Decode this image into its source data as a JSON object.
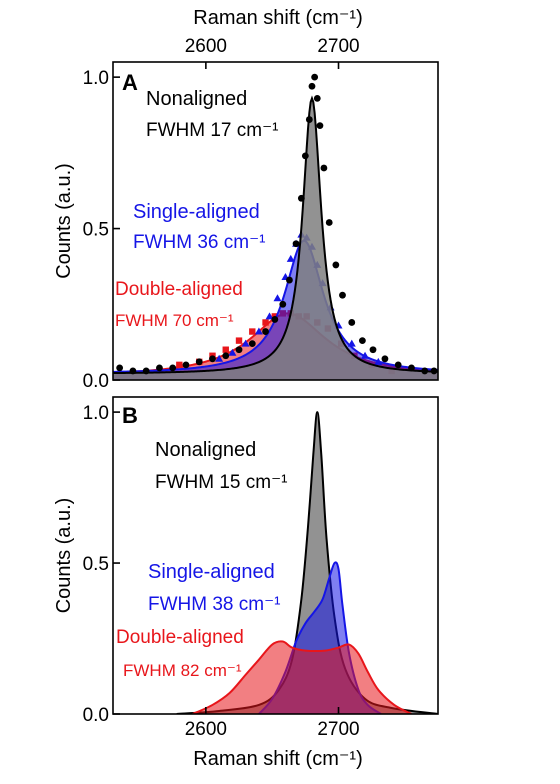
{
  "figure": {
    "top_axis_label": "Raman shift (cm⁻¹)",
    "bottom_axis_label": "Raman shift (cm⁻¹)",
    "colors": {
      "black": "#000000",
      "blue": "#1515e6",
      "red": "#e8161b",
      "gray": "#7f7f7f"
    }
  },
  "chart_data": [
    {
      "type": "line",
      "panel_label": "A",
      "xlabel": "Raman shift (cm⁻¹)",
      "xlabel_position": "top",
      "ylabel": "Counts (a.u.)",
      "xlim": [
        2530,
        2775
      ],
      "ylim": [
        0,
        1.05
      ],
      "xticks": [
        2600,
        2700
      ],
      "yticks": [
        0.0,
        0.5,
        1.0
      ],
      "ytick_labels": [
        "0.0",
        "0.5",
        "1.0"
      ],
      "grid": false,
      "series": [
        {
          "name": "Nonaligned",
          "fwhm_label": "FWHM 17 cm⁻¹",
          "color": "#000000",
          "fill": "#7f7f7f",
          "marker": "circle",
          "fit": {
            "center": 2680,
            "height": 0.93,
            "fwhm": 17,
            "baseline": 0.02
          },
          "x": [
            2535,
            2545,
            2555,
            2565,
            2575,
            2585,
            2595,
            2605,
            2615,
            2625,
            2635,
            2645,
            2652,
            2658,
            2663,
            2668,
            2672,
            2675,
            2678,
            2680,
            2682,
            2684,
            2686,
            2689,
            2693,
            2698,
            2703,
            2710,
            2718,
            2726,
            2735,
            2745,
            2755,
            2765,
            2772
          ],
          "values": [
            0.04,
            0.03,
            0.03,
            0.04,
            0.04,
            0.05,
            0.06,
            0.07,
            0.08,
            0.1,
            0.12,
            0.16,
            0.2,
            0.25,
            0.33,
            0.45,
            0.6,
            0.74,
            0.86,
            0.97,
            1.0,
            0.93,
            0.84,
            0.7,
            0.52,
            0.38,
            0.28,
            0.19,
            0.13,
            0.1,
            0.07,
            0.05,
            0.04,
            0.03,
            0.03
          ]
        },
        {
          "name": "Single-aligned",
          "fwhm_label": "FWHM 36 cm⁻¹",
          "color": "#1515e6",
          "fill": "#1515e6",
          "marker": "triangle",
          "fit": {
            "center": 2674,
            "height": 0.46,
            "fwhm": 36,
            "baseline": 0.02
          },
          "x": [
            2610,
            2620,
            2630,
            2640,
            2648,
            2654,
            2660,
            2664,
            2668,
            2672,
            2676,
            2680,
            2684,
            2688,
            2694,
            2700,
            2710,
            2720,
            2730
          ],
          "values": [
            0.07,
            0.09,
            0.12,
            0.16,
            0.21,
            0.27,
            0.34,
            0.4,
            0.45,
            0.48,
            0.47,
            0.44,
            0.38,
            0.32,
            0.24,
            0.18,
            0.12,
            0.08,
            0.06
          ]
        },
        {
          "name": "Double-aligned",
          "fwhm_label": "FWHM 70 cm⁻¹",
          "color": "#e8161b",
          "fill": "#e8161b",
          "marker": "square",
          "fit": {
            "center": 2662,
            "height": 0.22,
            "fwhm": 70,
            "baseline": 0.01
          },
          "x": [
            2565,
            2580,
            2595,
            2605,
            2615,
            2625,
            2635,
            2645,
            2652,
            2658,
            2664,
            2670,
            2676,
            2684,
            2692,
            2702,
            2712,
            2725,
            2740
          ],
          "values": [
            0.03,
            0.05,
            0.06,
            0.08,
            0.1,
            0.13,
            0.16,
            0.19,
            0.21,
            0.22,
            0.22,
            0.21,
            0.21,
            0.19,
            0.17,
            0.12,
            0.08,
            0.05,
            0.03
          ]
        }
      ]
    },
    {
      "type": "area",
      "panel_label": "B",
      "xlabel": "Raman shift (cm⁻¹)",
      "ylabel": "Counts (a.u.)",
      "xlim": [
        2530,
        2775
      ],
      "ylim": [
        0,
        1.05
      ],
      "xticks": [
        2600,
        2700
      ],
      "yticks": [
        0.0,
        0.5,
        1.0
      ],
      "ytick_labels": [
        "0.0",
        "0.5",
        "1.0"
      ],
      "grid": false,
      "series": [
        {
          "name": "Nonaligned",
          "fwhm_label": "FWHM 15 cm⁻¹",
          "color": "#000000",
          "fill": "#7f7f7f",
          "x": [
            2578,
            2610,
            2640,
            2655,
            2665,
            2672,
            2677,
            2681,
            2684,
            2687,
            2691,
            2697,
            2705,
            2720,
            2740,
            2775
          ],
          "values": [
            0.0,
            0.01,
            0.03,
            0.08,
            0.18,
            0.38,
            0.62,
            0.86,
            1.0,
            0.86,
            0.58,
            0.32,
            0.15,
            0.05,
            0.02,
            0.0
          ]
        },
        {
          "name": "Single-aligned",
          "fwhm_label": "FWHM 38 cm⁻¹",
          "color": "#1515e6",
          "fill": "#1515e6",
          "x": [
            2640,
            2650,
            2660,
            2668,
            2675,
            2682,
            2688,
            2693,
            2697,
            2700,
            2703,
            2708,
            2715,
            2722,
            2732
          ],
          "values": [
            0.0,
            0.05,
            0.14,
            0.24,
            0.3,
            0.34,
            0.38,
            0.45,
            0.5,
            0.48,
            0.36,
            0.2,
            0.08,
            0.03,
            0.0
          ]
        },
        {
          "name": "Double-aligned",
          "fwhm_label": "FWHM 82 cm⁻¹",
          "color": "#e8161b",
          "fill": "#e8161b",
          "x": [
            2590,
            2605,
            2618,
            2630,
            2640,
            2650,
            2658,
            2665,
            2675,
            2690,
            2700,
            2708,
            2715,
            2722,
            2730,
            2742,
            2755
          ],
          "values": [
            0.0,
            0.03,
            0.07,
            0.13,
            0.18,
            0.23,
            0.24,
            0.22,
            0.21,
            0.21,
            0.22,
            0.23,
            0.2,
            0.14,
            0.08,
            0.03,
            0.0
          ]
        }
      ]
    }
  ]
}
